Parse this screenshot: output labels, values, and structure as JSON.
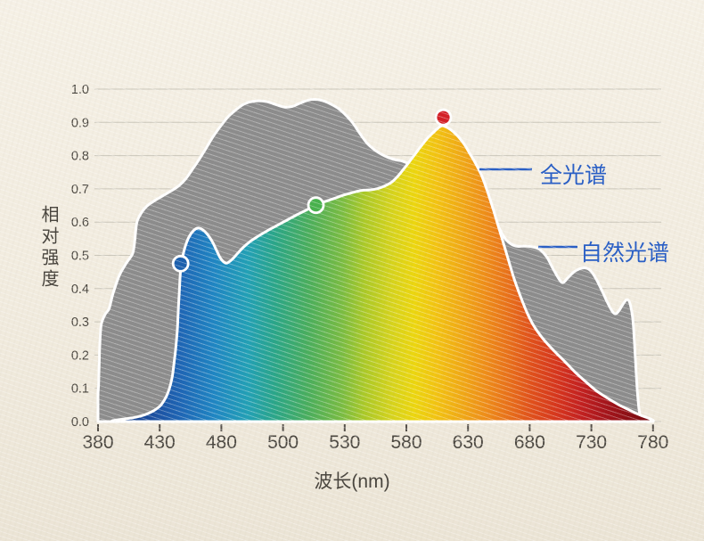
{
  "chart_data": {
    "type": "area",
    "xlabel": "波长(nm)",
    "ylabel": "相对强度",
    "x_tick_labels": [
      "380",
      "430",
      "480",
      "500",
      "530",
      "580",
      "630",
      "680",
      "730",
      "780"
    ],
    "y_tick_labels": [
      "1.0",
      "0.9",
      "0.8",
      "0.7",
      "0.6",
      "0.5",
      "0.4",
      "0.3",
      "0.2",
      "0.1",
      "0.0"
    ],
    "ylim": [
      0,
      1
    ],
    "grid": true,
    "legend_position": "right-inline-callouts",
    "legend": [
      {
        "label": "全光谱",
        "series": "full_spectrum"
      },
      {
        "label": "自然光谱",
        "series": "natural_spectrum"
      }
    ],
    "series": [
      {
        "name": "自然光谱",
        "type": "area",
        "fill": "#8c8c8c",
        "points": [
          [
            380,
            0
          ],
          [
            380,
            0.08
          ],
          [
            380.5,
            0.115
          ],
          [
            381,
            0.182
          ],
          [
            381.5,
            0.236
          ],
          [
            382,
            0.27
          ],
          [
            383,
            0.298
          ],
          [
            386,
            0.324
          ],
          [
            389,
            0.34
          ],
          [
            392,
            0.383
          ],
          [
            397,
            0.437
          ],
          [
            402.5,
            0.474
          ],
          [
            407.5,
            0.501
          ],
          [
            409,
            0.52
          ],
          [
            410,
            0.55
          ],
          [
            410.7,
            0.579
          ],
          [
            411.8,
            0.603
          ],
          [
            414.7,
            0.625
          ],
          [
            419,
            0.646
          ],
          [
            424.8,
            0.662
          ],
          [
            432,
            0.678
          ],
          [
            439.3,
            0.694
          ],
          [
            445,
            0.708
          ],
          [
            450.8,
            0.729
          ],
          [
            456.6,
            0.759
          ],
          [
            462.4,
            0.791
          ],
          [
            468.2,
            0.826
          ],
          [
            474,
            0.861
          ],
          [
            479.7,
            0.89
          ],
          [
            482.2,
            0.917
          ],
          [
            484.5,
            0.936
          ],
          [
            486.8,
            0.952
          ],
          [
            489.1,
            0.961
          ],
          [
            492,
            0.965
          ],
          [
            494.9,
            0.962
          ],
          [
            497.8,
            0.953
          ],
          [
            500.7,
            0.946
          ],
          [
            504.5,
            0.948
          ],
          [
            508,
            0.957
          ],
          [
            512.3,
            0.967
          ],
          [
            516.2,
            0.969
          ],
          [
            520.1,
            0.964
          ],
          [
            523.6,
            0.954
          ],
          [
            527.1,
            0.941
          ],
          [
            530.9,
            0.922
          ],
          [
            536.6,
            0.898
          ],
          [
            542.4,
            0.866
          ],
          [
            548.2,
            0.837
          ],
          [
            554,
            0.818
          ],
          [
            559.8,
            0.804
          ],
          [
            565.5,
            0.794
          ],
          [
            571.3,
            0.787
          ],
          [
            577.1,
            0.783
          ],
          [
            586.5,
            0.769
          ],
          [
            597.3,
            0.756
          ],
          [
            608.2,
            0.737
          ],
          [
            619,
            0.718
          ],
          [
            627.7,
            0.702
          ],
          [
            636.3,
            0.689
          ],
          [
            643.6,
            0.684
          ],
          [
            647,
            0.657
          ],
          [
            649.4,
            0.63
          ],
          [
            655.2,
            0.582
          ],
          [
            660.2,
            0.55
          ],
          [
            665.3,
            0.533
          ],
          [
            670.3,
            0.527
          ],
          [
            676.9,
            0.528
          ],
          [
            684,
            0.524
          ],
          [
            689.1,
            0.515
          ],
          [
            694.2,
            0.493
          ],
          [
            699.2,
            0.458
          ],
          [
            704.3,
            0.426
          ],
          [
            707.2,
            0.418
          ],
          [
            710.8,
            0.432
          ],
          [
            715.9,
            0.45
          ],
          [
            720.9,
            0.46
          ],
          [
            725.3,
            0.462
          ],
          [
            729.6,
            0.453
          ],
          [
            733.9,
            0.429
          ],
          [
            738.2,
            0.397
          ],
          [
            742.6,
            0.362
          ],
          [
            746.9,
            0.332
          ],
          [
            749.8,
            0.324
          ],
          [
            752.7,
            0.335
          ],
          [
            756.3,
            0.357
          ],
          [
            759.2,
            0.367
          ],
          [
            761.4,
            0.354
          ],
          [
            763.5,
            0.311
          ],
          [
            765,
            0.236
          ],
          [
            766.4,
            0.142
          ],
          [
            767.9,
            0.062
          ],
          [
            769.3,
            0.019
          ],
          [
            770.4,
            0
          ]
        ]
      },
      {
        "name": "全光谱",
        "type": "area",
        "fill": "spectrum-gradient",
        "points": [
          [
            391,
            0
          ],
          [
            392.3,
            0.003
          ],
          [
            401.7,
            0.008
          ],
          [
            410.4,
            0.013
          ],
          [
            418.3,
            0.021
          ],
          [
            424.8,
            0.032
          ],
          [
            430.6,
            0.048
          ],
          [
            434.9,
            0.072
          ],
          [
            437.8,
            0.099
          ],
          [
            440,
            0.131
          ],
          [
            441.4,
            0.169
          ],
          [
            442.9,
            0.217
          ],
          [
            444.3,
            0.276
          ],
          [
            445,
            0.33
          ],
          [
            445.8,
            0.383
          ],
          [
            446.5,
            0.432
          ],
          [
            447.2,
            0.464
          ],
          [
            448.6,
            0.496
          ],
          [
            450.8,
            0.528
          ],
          [
            453.7,
            0.555
          ],
          [
            457.3,
            0.574
          ],
          [
            460.9,
            0.582
          ],
          [
            464.5,
            0.578
          ],
          [
            468.1,
            0.566
          ],
          [
            472.5,
            0.542
          ],
          [
            476.1,
            0.515
          ],
          [
            479,
            0.493
          ],
          [
            480.8,
            0.48
          ],
          [
            481.9,
            0.477
          ],
          [
            483.4,
            0.487
          ],
          [
            485.1,
            0.504
          ],
          [
            487.1,
            0.524
          ],
          [
            489.4,
            0.542
          ],
          [
            492,
            0.558
          ],
          [
            494.9,
            0.574
          ],
          [
            498.1,
            0.59
          ],
          [
            501.9,
            0.606
          ],
          [
            506.7,
            0.622
          ],
          [
            511,
            0.635
          ],
          [
            515.8,
            0.65
          ],
          [
            520.1,
            0.661
          ],
          [
            524.4,
            0.67
          ],
          [
            528.8,
            0.68
          ],
          [
            533.8,
            0.686
          ],
          [
            539.5,
            0.692
          ],
          [
            545.3,
            0.696
          ],
          [
            551.1,
            0.697
          ],
          [
            556.9,
            0.701
          ],
          [
            562.7,
            0.709
          ],
          [
            568.4,
            0.721
          ],
          [
            574.2,
            0.743
          ],
          [
            580,
            0.77
          ],
          [
            585.8,
            0.798
          ],
          [
            591.6,
            0.827
          ],
          [
            597.3,
            0.853
          ],
          [
            603.1,
            0.874
          ],
          [
            606.7,
            0.886
          ],
          [
            609.6,
            0.89
          ],
          [
            613.9,
            0.883
          ],
          [
            618.3,
            0.871
          ],
          [
            622.6,
            0.855
          ],
          [
            627,
            0.834
          ],
          [
            631.3,
            0.807
          ],
          [
            635.6,
            0.78
          ],
          [
            640.7,
            0.743
          ],
          [
            645,
            0.7
          ],
          [
            649.4,
            0.651
          ],
          [
            653.7,
            0.598
          ],
          [
            658.1,
            0.544
          ],
          [
            662.4,
            0.491
          ],
          [
            667.4,
            0.429
          ],
          [
            673.2,
            0.37
          ],
          [
            678.3,
            0.324
          ],
          [
            684,
            0.284
          ],
          [
            691.3,
            0.247
          ],
          [
            699.9,
            0.212
          ],
          [
            708.6,
            0.18
          ],
          [
            717.3,
            0.147
          ],
          [
            726,
            0.118
          ],
          [
            734.6,
            0.091
          ],
          [
            743.3,
            0.07
          ],
          [
            752,
            0.051
          ],
          [
            760.6,
            0.035
          ],
          [
            769.3,
            0.02
          ],
          [
            775.1,
            0.012
          ],
          [
            780,
            0.004
          ],
          [
            780,
            0
          ]
        ]
      }
    ],
    "gradient_stops": [
      [
        0,
        "#17377e"
      ],
      [
        0.1,
        "#1b4fa0"
      ],
      [
        0.15,
        "#1e66b5"
      ],
      [
        0.21,
        "#1f86c3"
      ],
      [
        0.27,
        "#22a0b5"
      ],
      [
        0.32,
        "#2ba687"
      ],
      [
        0.38,
        "#4bae5c"
      ],
      [
        0.44,
        "#7abc42"
      ],
      [
        0.48,
        "#abc928"
      ],
      [
        0.53,
        "#d6d31c"
      ],
      [
        0.57,
        "#ecd60f"
      ],
      [
        0.61,
        "#f2c312"
      ],
      [
        0.66,
        "#f0a616"
      ],
      [
        0.7,
        "#ee8c19"
      ],
      [
        0.74,
        "#e8701a"
      ],
      [
        0.78,
        "#e0511b"
      ],
      [
        0.83,
        "#d5341d"
      ],
      [
        0.87,
        "#c32120"
      ],
      [
        0.91,
        "#a8161c"
      ],
      [
        0.955,
        "#8d0f15"
      ],
      [
        1,
        "#740c11"
      ]
    ],
    "markers": [
      {
        "name": "blue-dot",
        "nm": 447,
        "value": 0.475,
        "color": "#1b5fad"
      },
      {
        "name": "green-dot",
        "nm": 516,
        "value": 0.651,
        "color": "#47b14c"
      },
      {
        "name": "red-dot",
        "nm": 610,
        "value": 0.915,
        "color": "#d42027"
      }
    ]
  },
  "colors": {
    "grid": "#cbc7bb",
    "axis_text": "#4b4740",
    "tick": "#55504a",
    "outline": "#ffffff",
    "natural_gray": "#8c8c8c",
    "legend_blue": "#2a5fc5"
  }
}
